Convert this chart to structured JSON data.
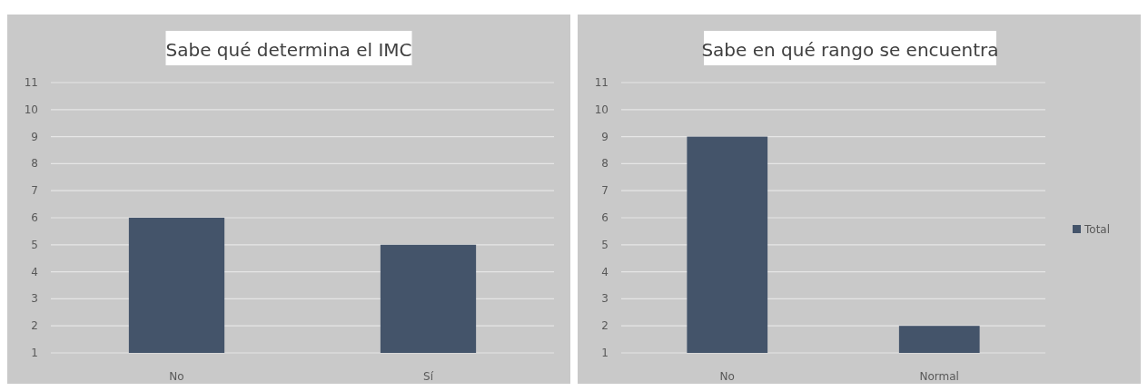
{
  "chart_data": [
    {
      "type": "bar",
      "title": "Sabe qué determina el IMC",
      "categories": [
        "No",
        "Sí"
      ],
      "series": [
        {
          "color": "#44546a",
          "values": [
            6,
            5
          ]
        }
      ],
      "ylim": [
        1,
        11
      ],
      "yticks": [
        1,
        2,
        3,
        4,
        5,
        6,
        7,
        8,
        9,
        10,
        11
      ],
      "grid": "y"
    },
    {
      "type": "bar",
      "title": "Sabe en qué rango se encuentra",
      "categories": [
        "No",
        "Normal"
      ],
      "series": [
        {
          "name": "Total",
          "color": "#44546a",
          "values": [
            9,
            2
          ]
        }
      ],
      "ylim": [
        1,
        11
      ],
      "yticks": [
        1,
        2,
        3,
        4,
        5,
        6,
        7,
        8,
        9,
        10,
        11
      ],
      "grid": "y",
      "legend": "right"
    }
  ]
}
